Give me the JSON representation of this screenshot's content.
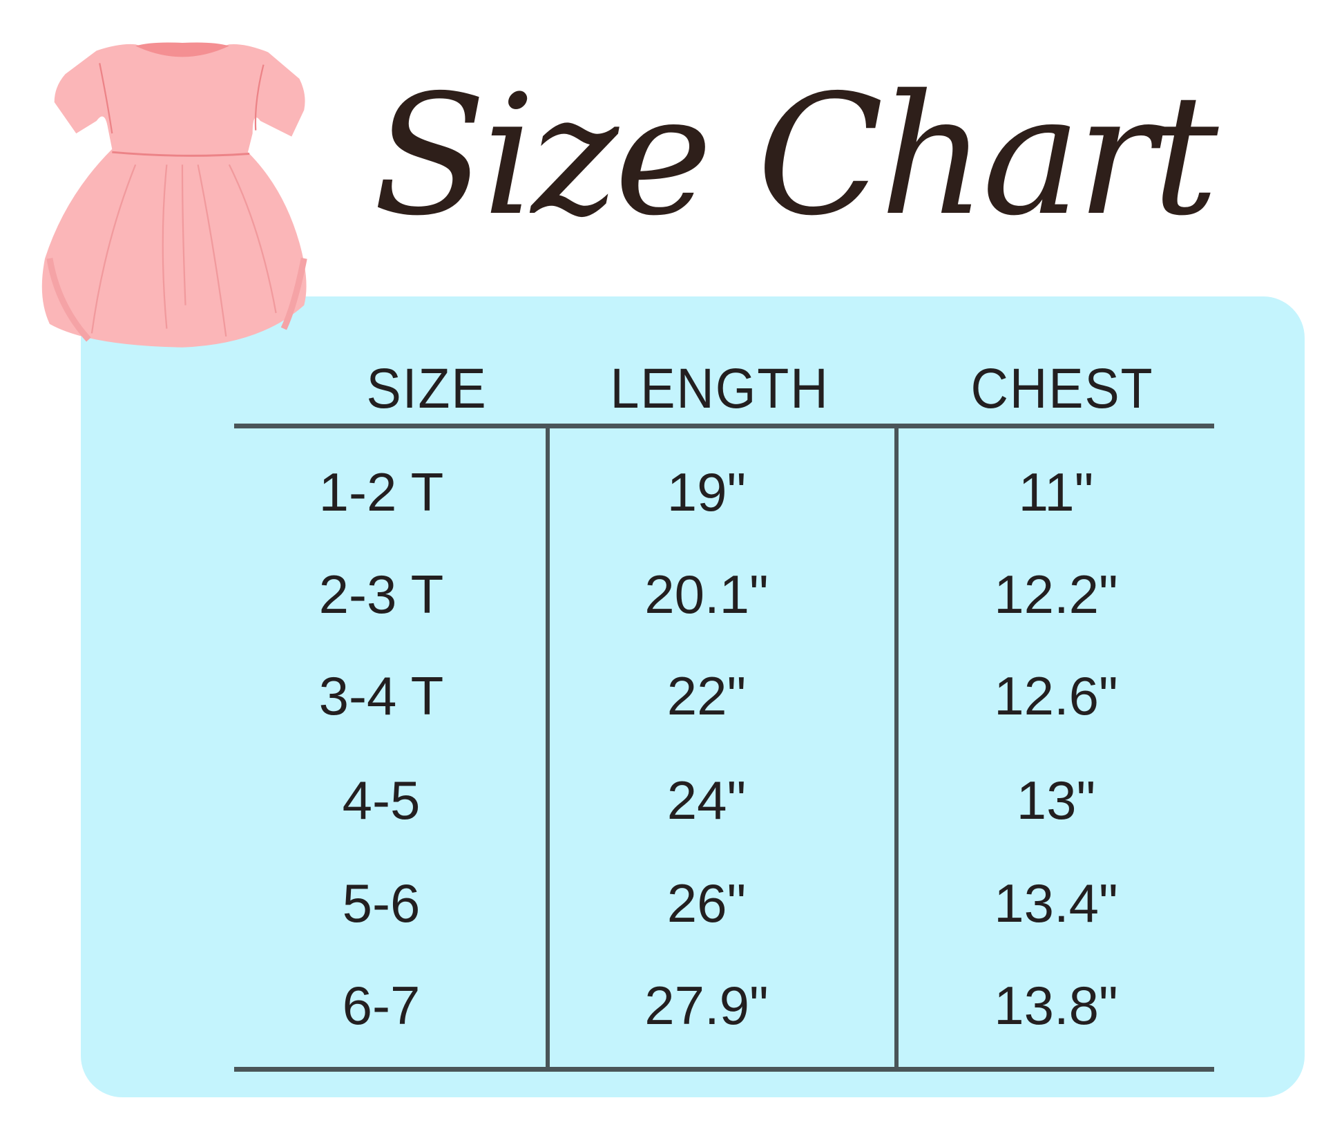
{
  "title": "Size Chart",
  "colors": {
    "panel": "#c4f4fd",
    "title": "#2e1f1a",
    "lines": "#4a5558",
    "dress": "#fbb6b8"
  },
  "illustration": "pink-dress-icon",
  "table": {
    "headers": [
      "SIZE",
      "LENGTH",
      "CHEST"
    ],
    "rows": [
      [
        "1-2 T",
        "19\"",
        "11\""
      ],
      [
        "2-3 T",
        "20.1\"",
        "12.2\""
      ],
      [
        "3-4 T",
        "22\"",
        "12.6\""
      ],
      [
        "4-5",
        "24\"",
        "13\""
      ],
      [
        "5-6",
        "26\"",
        "13.4\""
      ],
      [
        "6-7",
        "27.9\"",
        "13.8\""
      ]
    ]
  }
}
